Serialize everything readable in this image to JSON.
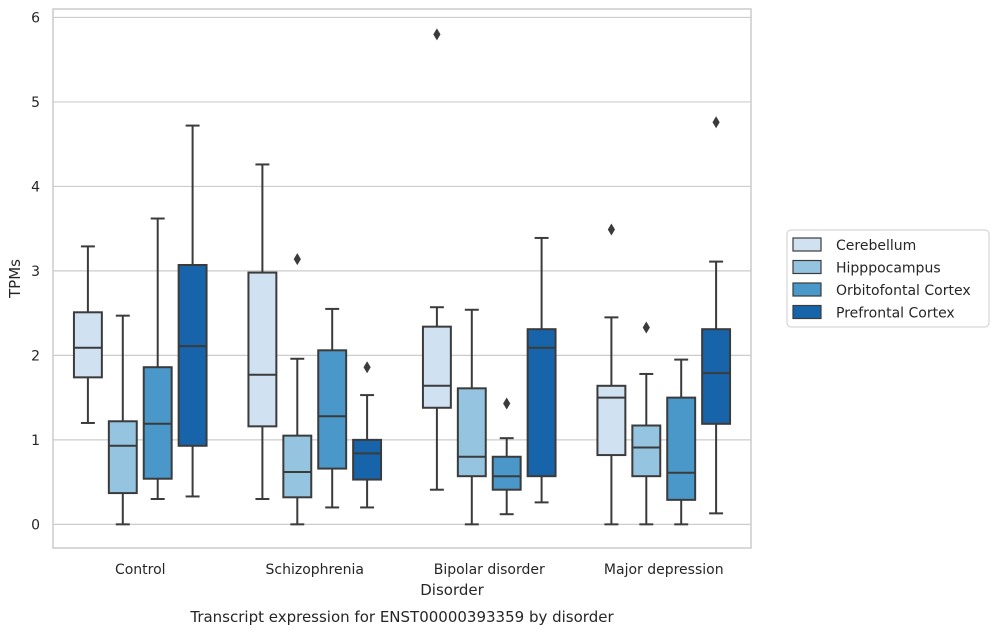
{
  "chart_data": {
    "type": "box",
    "xlabel": "Disorder",
    "ylabel": "TPMs",
    "caption": "Transcript expression for ENST00000393359 by disorder",
    "categories": [
      "Control",
      "Schizophrenia",
      "Bipolar disorder",
      "Major depression"
    ],
    "ylim": [
      -0.28,
      6.1
    ],
    "yticks": [
      0,
      1,
      2,
      3,
      4,
      5,
      6
    ],
    "grid": "horizontal",
    "legend_position": "right",
    "series": [
      {
        "name": "Cerebellum",
        "color": "#d0e1f2",
        "boxes": [
          {
            "whislo": 1.2,
            "q1": 1.74,
            "med": 2.09,
            "q3": 2.51,
            "whishi": 3.29,
            "fliers": []
          },
          {
            "whislo": 0.3,
            "q1": 1.16,
            "med": 1.77,
            "q3": 2.98,
            "whishi": 4.26,
            "fliers": []
          },
          {
            "whislo": 0.41,
            "q1": 1.38,
            "med": 1.64,
            "q3": 2.34,
            "whishi": 2.57,
            "fliers": [
              5.8
            ]
          },
          {
            "whislo": 0.0,
            "q1": 0.82,
            "med": 1.5,
            "q3": 1.64,
            "whishi": 2.45,
            "fliers": [
              3.49
            ]
          }
        ]
      },
      {
        "name": "Hipppocampus",
        "color": "#94c4df",
        "boxes": [
          {
            "whislo": 0.0,
            "q1": 0.37,
            "med": 0.93,
            "q3": 1.22,
            "whishi": 2.47,
            "fliers": []
          },
          {
            "whislo": 0.0,
            "q1": 0.32,
            "med": 0.62,
            "q3": 1.05,
            "whishi": 1.96,
            "fliers": [
              3.14
            ]
          },
          {
            "whislo": 0.0,
            "q1": 0.57,
            "med": 0.8,
            "q3": 1.61,
            "whishi": 2.54,
            "fliers": []
          },
          {
            "whislo": 0.0,
            "q1": 0.57,
            "med": 0.91,
            "q3": 1.17,
            "whishi": 1.78,
            "fliers": [
              2.33
            ]
          }
        ]
      },
      {
        "name": "Orbitofontal Cortex",
        "color": "#4a98c9",
        "boxes": [
          {
            "whislo": 0.3,
            "q1": 0.54,
            "med": 1.19,
            "q3": 1.86,
            "whishi": 3.62,
            "fliers": []
          },
          {
            "whislo": 0.2,
            "q1": 0.66,
            "med": 1.28,
            "q3": 2.06,
            "whishi": 2.55,
            "fliers": []
          },
          {
            "whislo": 0.12,
            "q1": 0.41,
            "med": 0.57,
            "q3": 0.8,
            "whishi": 1.02,
            "fliers": [
              1.43
            ]
          },
          {
            "whislo": 0.0,
            "q1": 0.29,
            "med": 0.61,
            "q3": 1.5,
            "whishi": 1.95,
            "fliers": []
          }
        ]
      },
      {
        "name": "Prefrontal Cortex",
        "color": "#1764ab",
        "boxes": [
          {
            "whislo": 0.33,
            "q1": 0.93,
            "med": 2.11,
            "q3": 3.07,
            "whishi": 4.72,
            "fliers": []
          },
          {
            "whislo": 0.2,
            "q1": 0.53,
            "med": 0.84,
            "q3": 1.0,
            "whishi": 1.53,
            "fliers": [
              1.86
            ]
          },
          {
            "whislo": 0.26,
            "q1": 0.57,
            "med": 2.09,
            "q3": 2.31,
            "whishi": 3.39,
            "fliers": []
          },
          {
            "whislo": 0.13,
            "q1": 1.19,
            "med": 1.79,
            "q3": 2.31,
            "whishi": 3.11,
            "fliers": [
              4.76
            ]
          }
        ]
      }
    ]
  },
  "colors": {
    "grid": "#cccccc",
    "frame": "#cccccc",
    "box_edge": "#3b3b3b"
  }
}
